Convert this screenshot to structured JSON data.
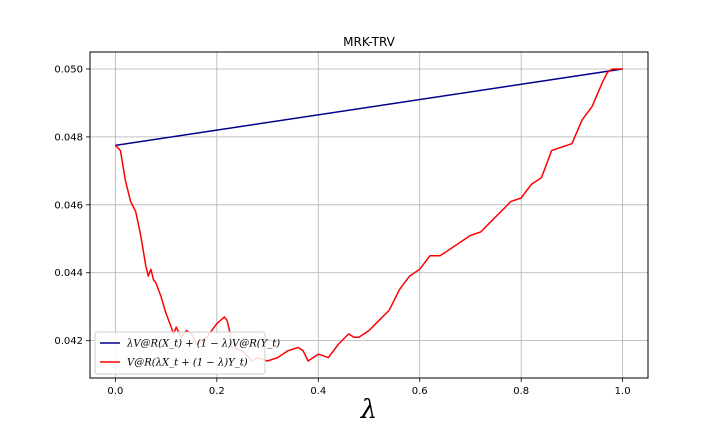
{
  "chart_data": {
    "type": "line",
    "title": "MRK-TRV",
    "xlabel": "λ",
    "ylabel": "",
    "xlim": [
      -0.05,
      1.05
    ],
    "ylim": [
      0.0409,
      0.0505
    ],
    "xticks": [
      0.0,
      0.2,
      0.4,
      0.6,
      0.8,
      1.0
    ],
    "xtick_labels": [
      "0.0",
      "0.2",
      "0.4",
      "0.6",
      "0.8",
      "1.0"
    ],
    "yticks": [
      0.042,
      0.044,
      0.046,
      0.048,
      0.05
    ],
    "ytick_labels": [
      "0.042",
      "0.044",
      "0.046",
      "0.048",
      "0.050"
    ],
    "grid": true,
    "legend_position": "lower-left",
    "series": [
      {
        "name": "λV@R(X_t) + (1 − λ)V@R(Y_t)",
        "color": "#00008b",
        "x": [
          0.0,
          1.0
        ],
        "y": [
          0.04775,
          0.05
        ]
      },
      {
        "name": "V@R(λX_t + (1 − λ)Y_t)",
        "color": "#ff0000",
        "x": [
          0.0,
          0.01,
          0.02,
          0.03,
          0.04,
          0.05,
          0.06,
          0.065,
          0.07,
          0.075,
          0.08,
          0.09,
          0.1,
          0.11,
          0.115,
          0.12,
          0.13,
          0.14,
          0.15,
          0.16,
          0.18,
          0.2,
          0.215,
          0.22,
          0.225,
          0.23,
          0.25,
          0.27,
          0.28,
          0.3,
          0.32,
          0.34,
          0.36,
          0.37,
          0.38,
          0.4,
          0.42,
          0.44,
          0.46,
          0.47,
          0.48,
          0.5,
          0.52,
          0.54,
          0.56,
          0.58,
          0.6,
          0.62,
          0.64,
          0.66,
          0.68,
          0.7,
          0.72,
          0.74,
          0.76,
          0.78,
          0.8,
          0.82,
          0.84,
          0.86,
          0.88,
          0.9,
          0.92,
          0.94,
          0.96,
          0.97,
          0.98,
          1.0
        ],
        "y": [
          0.04775,
          0.0476,
          0.0467,
          0.0461,
          0.0458,
          0.0451,
          0.0442,
          0.0439,
          0.0441,
          0.0438,
          0.0437,
          0.0433,
          0.0428,
          0.0424,
          0.0422,
          0.0424,
          0.0421,
          0.0423,
          0.0422,
          0.0419,
          0.0421,
          0.0425,
          0.0427,
          0.0426,
          0.0423,
          0.0418,
          0.0417,
          0.0414,
          0.0415,
          0.0414,
          0.0415,
          0.0417,
          0.0418,
          0.0417,
          0.0414,
          0.0416,
          0.0415,
          0.0419,
          0.0422,
          0.0421,
          0.0421,
          0.0423,
          0.0426,
          0.0429,
          0.0435,
          0.0439,
          0.0441,
          0.0445,
          0.0445,
          0.0447,
          0.0449,
          0.0451,
          0.0452,
          0.0455,
          0.0458,
          0.0461,
          0.0462,
          0.0466,
          0.0468,
          0.0476,
          0.0477,
          0.0478,
          0.0485,
          0.0489,
          0.0496,
          0.0499,
          0.05,
          0.05
        ]
      }
    ]
  }
}
